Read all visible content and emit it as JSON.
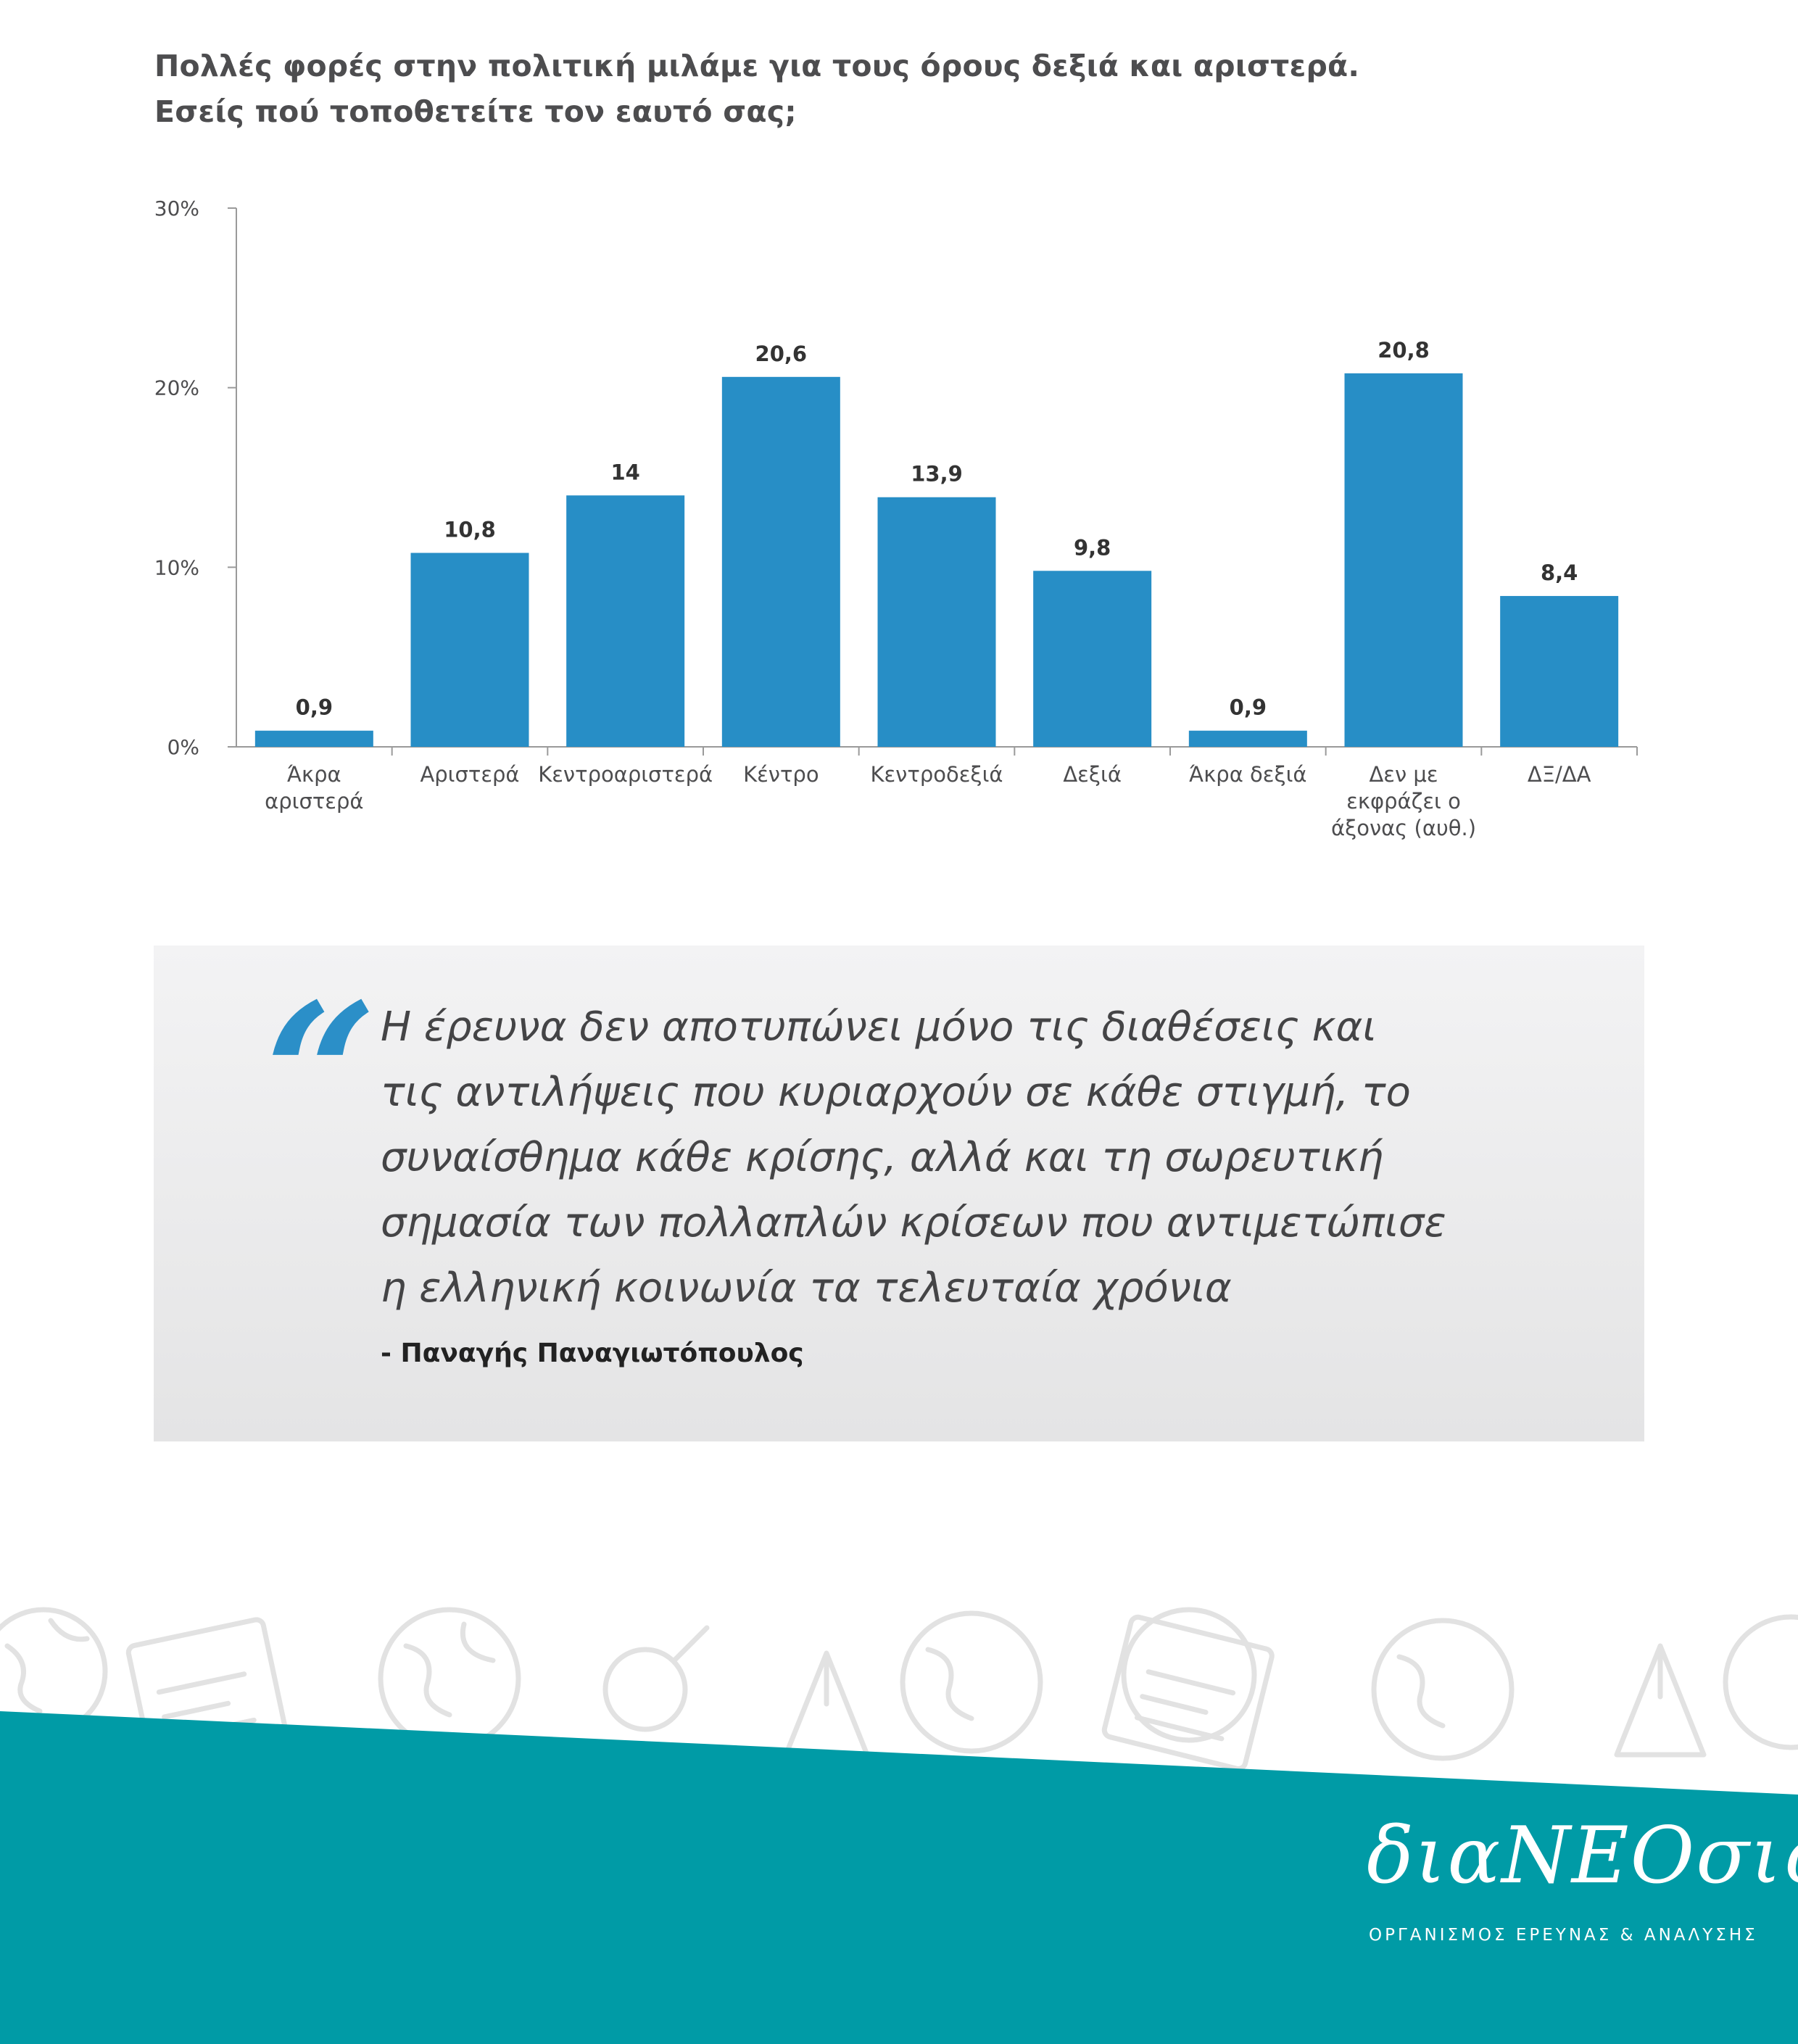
{
  "title": {
    "line1": "Πολλές φορές στην πολιτική μιλάμε για τους όρους δεξιά και αριστερά.",
    "line2": "Εσείς πού τοποθετείτε τον εαυτό σας;"
  },
  "chart_data": {
    "type": "bar",
    "categories": [
      [
        "Άκρα",
        "αριστερά"
      ],
      [
        "Αριστερά"
      ],
      [
        "Κεντροαριστερά"
      ],
      [
        "Κέντρο"
      ],
      [
        "Κεντροδεξιά"
      ],
      [
        "Δεξιά"
      ],
      [
        "Άκρα δεξιά"
      ],
      [
        "Δεν με",
        "εκφράζει ο",
        "άξονας (αυθ.)"
      ],
      [
        "ΔΞ/ΔΑ"
      ]
    ],
    "values": [
      0.9,
      10.8,
      14,
      20.6,
      13.9,
      9.8,
      0.9,
      20.8,
      8.4
    ],
    "value_labels": [
      "0,9",
      "10,8",
      "14",
      "20,6",
      "13,9",
      "9,8",
      "0,9",
      "20,8",
      "8,4"
    ],
    "ylim": [
      0,
      30
    ],
    "yticks": [
      0,
      10,
      20,
      30
    ],
    "ytick_labels": [
      "0%",
      "10%",
      "20%",
      "30%"
    ],
    "bar_color": "#278ec6",
    "grid": false
  },
  "quote": {
    "mark": "“",
    "lines": [
      "Η έρευνα δεν αποτυπώνει μόνο τις διαθέσεις και",
      "τις αντιλήψεις που κυριαρχούν σε κάθε στιγμή, το",
      "συναίσθημα κάθε κρίσης, αλλά και τη σωρευτική",
      "σημασία των πολλαπλών κρίσεων που αντιμετώπισε",
      "η ελληνική κοινωνία τα τελευταία χρόνια"
    ],
    "author": "- Παναγής Παναγιωτόπουλος",
    "accent_color": "#2b8fc8"
  },
  "footer": {
    "logo": "διαΝΕΟσις",
    "subtitle": "ΟΡΓΑΝΙΣΜΟΣ ΕΡΕΥΝΑΣ & ΑΝΑΛΥΣΗΣ",
    "background_color": "#009ba6"
  }
}
